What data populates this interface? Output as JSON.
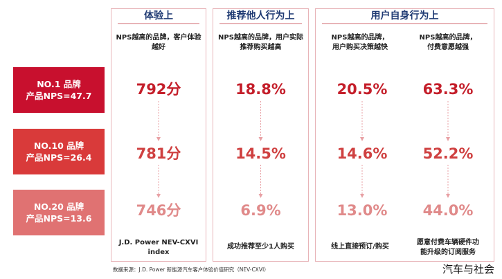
{
  "chart_data": {
    "type": "table",
    "columns": [
      {
        "group": "体验上",
        "caption": "NPS越高的品牌，客户体验越好",
        "footer": "J.D. Power NEV-CXVI index"
      },
      {
        "group": "推荐他人行为上",
        "caption": "NPS越高的品牌，用户实际推荐购买越高",
        "footer": "成功推荐至少1人购买"
      },
      {
        "group": "用户自身行为上",
        "caption": "NPS越高的品牌，用户购买决策越快",
        "footer": "线上直接预订/购买"
      },
      {
        "group": "用户自身行为上",
        "caption": "NPS越高的品牌，付费意愿越强",
        "footer": "愿意付费车辆硬件功能升级的订阅服务"
      }
    ],
    "rows": [
      {
        "line1": "NO.1 品牌",
        "line2": "产品NPS=47.7",
        "nps": 47.7,
        "values": [
          "792分",
          "18.8%",
          "20.5%",
          "63.3%"
        ]
      },
      {
        "line1": "NO.10 品牌",
        "line2": "产品NPS=26.4",
        "nps": 26.4,
        "values": [
          "781分",
          "14.5%",
          "14.6%",
          "52.2%"
        ]
      },
      {
        "line1": "NO.20 品牌",
        "line2": "产品NPS=13.6",
        "nps": 13.6,
        "values": [
          "746分",
          "6.9%",
          "13.0%",
          "44.0%"
        ]
      }
    ]
  },
  "headers": {
    "experience": "体验上",
    "referral": "推荐他人行为上",
    "self": "用户自身行为上"
  },
  "captions": {
    "c1_line1": "NPS越高的品牌，客户体验",
    "c1_line2": "越好",
    "c2_line1": "NPS越高的品牌，用户实际",
    "c2_line2": "推荐购买越高",
    "c3_line1": "NPS越高的品牌，",
    "c3_line2": "用户购买决策越快",
    "c4_line1": "NPS越高的品牌，",
    "c4_line2": "付费意愿越强"
  },
  "footers": {
    "f1_line1": "J.D. Power NEV-CXVI",
    "f1_line2": "index",
    "f2": "成功推荐至少1人购买",
    "f3": "线上直接预订/购买",
    "f4_line1": "愿意付费车辆硬件功",
    "f4_line2": "能升级的订阅服务"
  },
  "source": "数据来源：J.D. Power 新能源汽车客户体验价值研究（NEV-CXVI）",
  "watermark": "汽车与社会",
  "colors": {
    "row1": "#c8102e",
    "row2": "#d93a3a",
    "row3": "#e07272",
    "value1": "#c41e2a",
    "value2": "#cf4040",
    "value3": "#e08a8a",
    "border": "#e8b4b8",
    "header_text": "#1f3a73"
  }
}
